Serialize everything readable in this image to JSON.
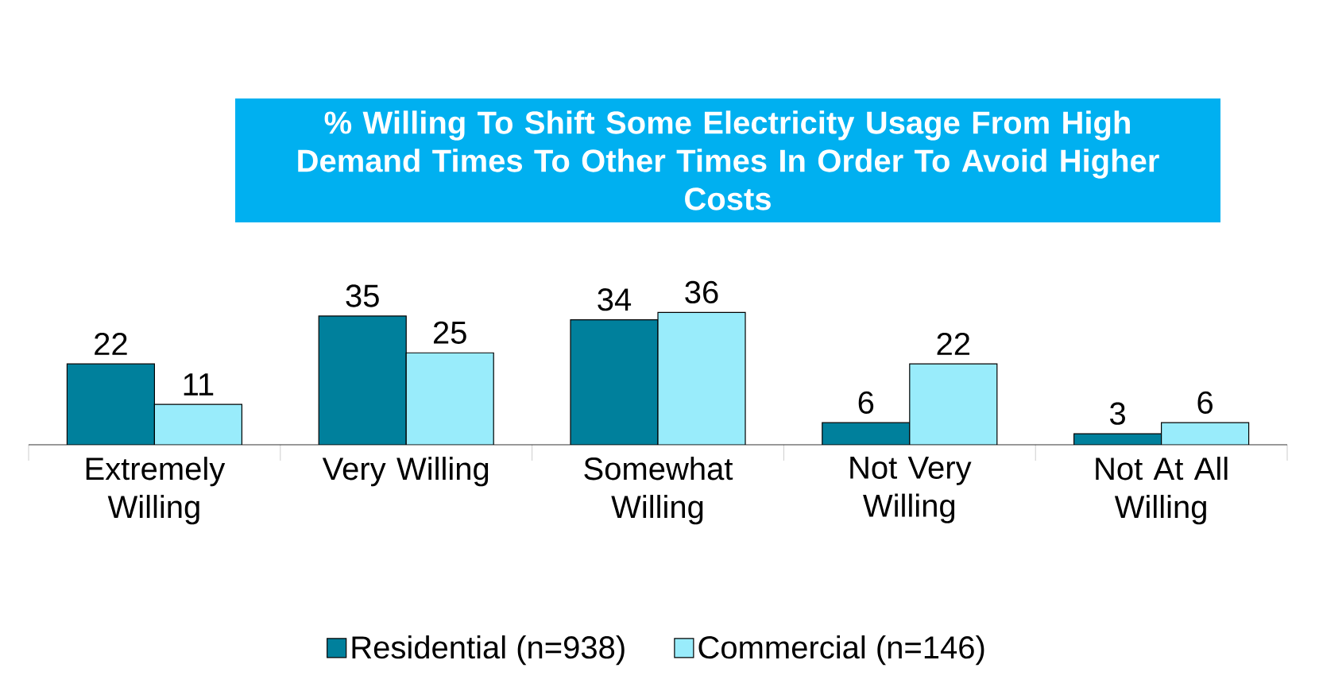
{
  "chart_data": {
    "type": "bar",
    "title": "% Willing To Shift Some  Electricity Usage From High Demand Times To Other Times In Order To Avoid Higher Costs",
    "categories": [
      "Extremely Willing",
      "Very Willing",
      "Somewhat Willing",
      "Not Very Willing",
      "Not At All Willing"
    ],
    "series": [
      {
        "name": "Residential (n=938)",
        "color": "#00809c",
        "values": [
          22,
          35,
          34,
          6,
          3
        ]
      },
      {
        "name": "Commercial (n=146)",
        "color": "#99ecfb",
        "values": [
          11,
          25,
          36,
          22,
          6
        ]
      }
    ],
    "data_labels": true,
    "legend": "bottom"
  }
}
